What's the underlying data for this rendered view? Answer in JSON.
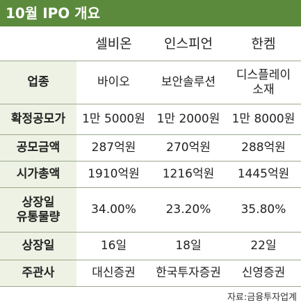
{
  "header": {
    "title": "10월 IPO 개요"
  },
  "table": {
    "columns": [
      "셀비온",
      "인스피언",
      "한켐"
    ],
    "rows": [
      [
        "업종",
        "바이오",
        "보안솔루션",
        "디스플레이\n소재"
      ],
      [
        "확정공모가",
        "1만 5000원",
        "1만 2000원",
        "1만 8000원"
      ],
      [
        "공모금액",
        "287억원",
        "270억원",
        "288억원"
      ],
      [
        "시가총액",
        "1910억원",
        "1216억원",
        "1445억원"
      ],
      [
        "상장일\n유통물량",
        "34.00%",
        "23.20%",
        "35.80%"
      ],
      [
        "상장일",
        "16일",
        "18일",
        "22일"
      ],
      [
        "주관사",
        "대신증권",
        "한국투자증권",
        "신영증권"
      ]
    ]
  },
  "footer": {
    "source": "자료:금융투자업계"
  }
}
